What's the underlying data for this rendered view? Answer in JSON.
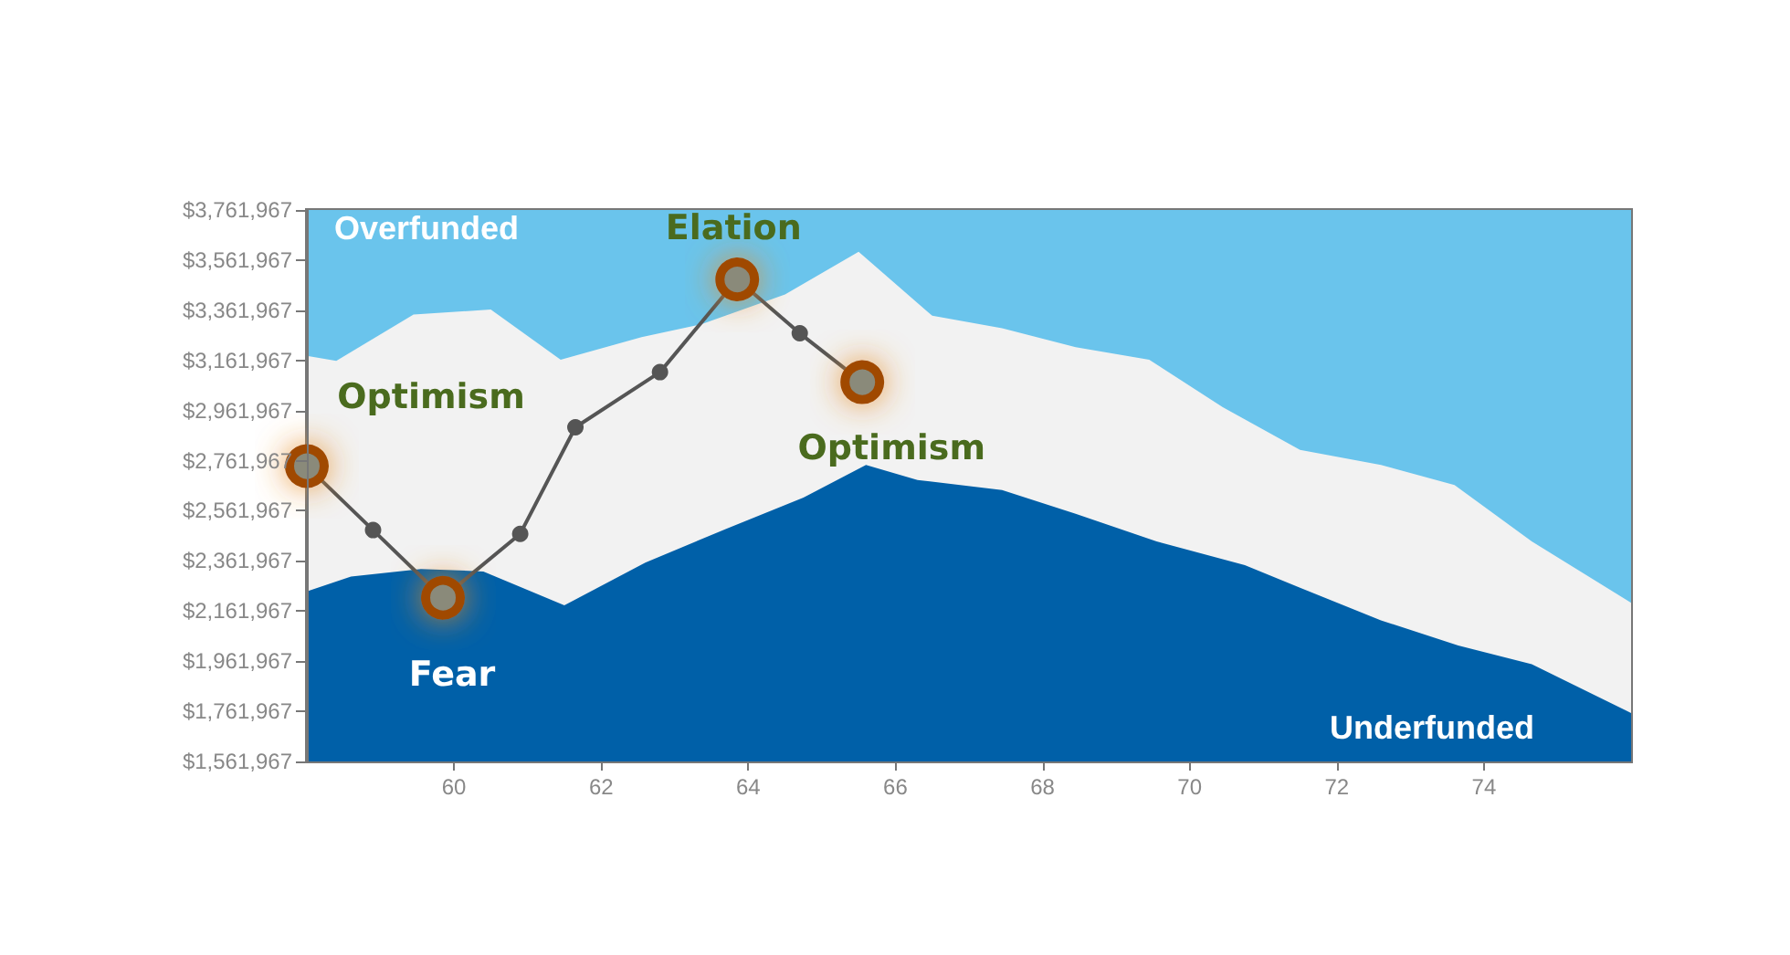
{
  "chart_data": {
    "type": "area",
    "xlim": [
      58,
      76
    ],
    "xticks": [
      60,
      62,
      64,
      66,
      68,
      70,
      72,
      74
    ],
    "ylim": [
      1561967,
      3761967
    ],
    "yticks": [
      {
        "value": 1561967,
        "label": "$1,561,967"
      },
      {
        "value": 1761967,
        "label": "$1,761,967"
      },
      {
        "value": 1961967,
        "label": "$1,961,967"
      },
      {
        "value": 2161967,
        "label": "$2,161,967"
      },
      {
        "value": 2361967,
        "label": "$2,361,967"
      },
      {
        "value": 2561967,
        "label": "$2,561,967"
      },
      {
        "value": 2761967,
        "label": "$2,761,967"
      },
      {
        "value": 2961967,
        "label": "$2,961,967"
      },
      {
        "value": 3161967,
        "label": "$3,161,967"
      },
      {
        "value": 3361967,
        "label": "$3,361,967"
      },
      {
        "value": 3561967,
        "label": "$3,561,967"
      },
      {
        "value": 3761967,
        "label": "$3,761,967"
      }
    ],
    "series": [
      {
        "name": "Overfunded",
        "color": "#6ac4ec",
        "x": [
          58,
          76
        ],
        "values": [
          3761967,
          3761967
        ]
      },
      {
        "color": "#f2f2f2",
        "x": [
          58,
          58.4,
          59.45,
          60.5,
          61.45,
          62.55,
          63.35,
          64.5,
          65.5,
          66.5,
          67.45,
          68.45,
          69.45,
          70.45,
          71.5,
          72.6,
          73.6,
          74.65,
          76
        ],
        "values": [
          3180000,
          3160000,
          3345000,
          3365000,
          3165000,
          3255000,
          3305000,
          3425000,
          3595000,
          3340000,
          3290000,
          3215000,
          3165000,
          2975000,
          2805000,
          2745000,
          2665000,
          2440000,
          2195000
        ]
      },
      {
        "name": "Underfunded",
        "color": "#0060a8",
        "x": [
          58,
          58.6,
          59.55,
          60.4,
          61.5,
          62.6,
          63.7,
          64.75,
          65.6,
          66.3,
          67.45,
          68.45,
          69.55,
          70.75,
          71.5,
          72.6,
          73.65,
          74.65,
          76
        ],
        "values": [
          2240000,
          2300000,
          2330000,
          2320000,
          2185000,
          2355000,
          2490000,
          2615000,
          2745000,
          2685000,
          2645000,
          2550000,
          2440000,
          2345000,
          2255000,
          2125000,
          2025000,
          1950000,
          1755000
        ]
      },
      {
        "type": "line",
        "marker": "circle",
        "color": "#555555",
        "x": [
          58,
          58.9,
          59.85,
          60.9,
          61.65,
          62.8,
          63.85,
          64.7,
          65.55
        ],
        "values": [
          2740000,
          2485000,
          2215000,
          2470000,
          2895000,
          3115000,
          3485000,
          3270000,
          3075000
        ]
      }
    ],
    "annotations": [
      {
        "text": "Optimism",
        "x": 58,
        "y": 2740000
      },
      {
        "text": "Fear",
        "x": 59.85,
        "y": 2215000
      },
      {
        "text": "Elation",
        "x": 63.85,
        "y": 3485000
      },
      {
        "text": "Optimism",
        "x": 65.55,
        "y": 3075000
      }
    ]
  }
}
